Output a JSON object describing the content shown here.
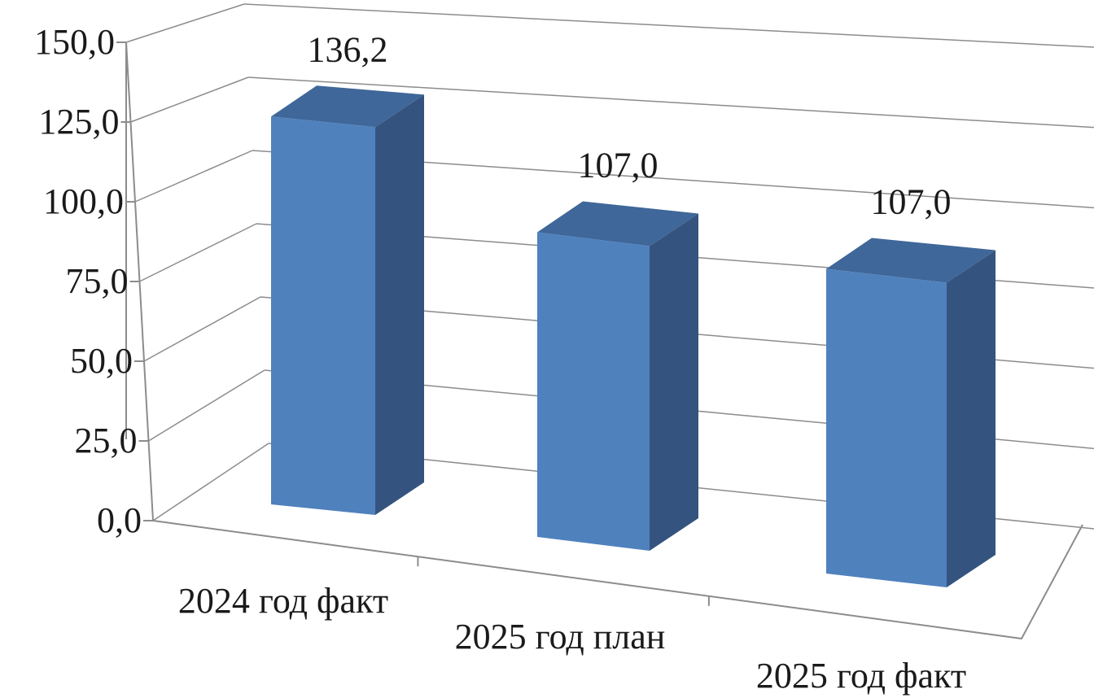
{
  "chart_data": {
    "type": "bar",
    "style": "3d-column",
    "categories": [
      "2024 год факт",
      "2025 год план",
      "2025 год факт"
    ],
    "series": [
      {
        "values": [
          136.2,
          107.0,
          107.0
        ]
      }
    ],
    "data_labels": [
      "136,2",
      "107,0",
      "107,0"
    ],
    "y_ticks": [
      "0,0",
      "25,0",
      "50,0",
      "75,0",
      "100,0",
      "125,0",
      "150,0"
    ],
    "ylim": [
      0,
      150
    ],
    "grid": true,
    "legend": "none",
    "title": "",
    "xlabel": "",
    "ylabel": ""
  },
  "colors": {
    "bar_front": "#4f81bd",
    "bar_side": "#34547f",
    "bar_top": "#3f6799",
    "grid": "#8c8c8c"
  }
}
